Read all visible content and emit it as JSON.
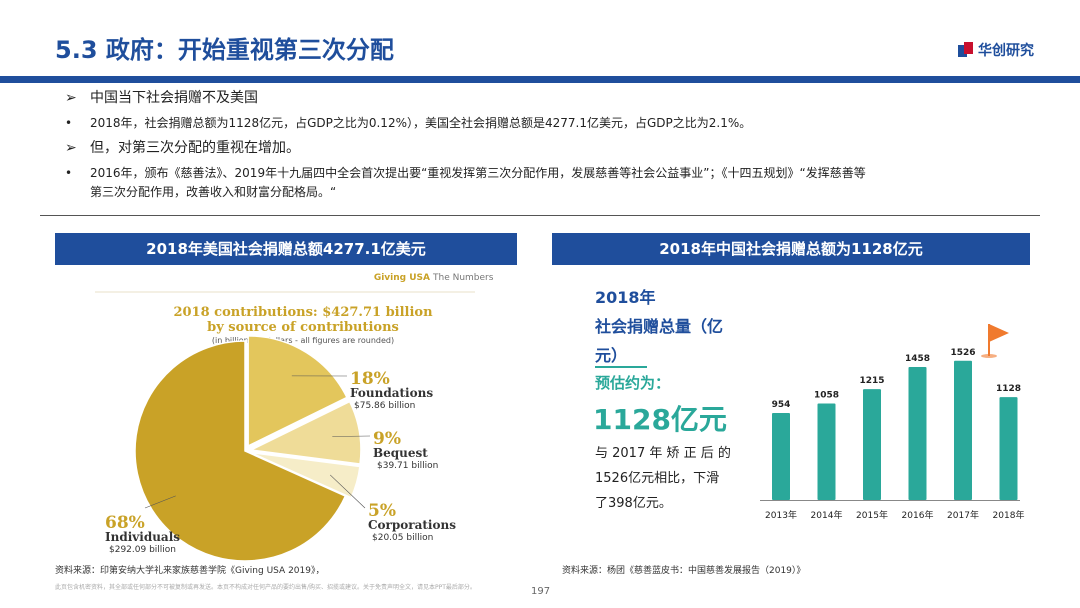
{
  "header": {
    "title": "5.3 政府：开始重视第三次分配",
    "logo_text": "华创研究"
  },
  "bullets": [
    {
      "marker": "➢",
      "text": "中国当下社会捐赠不及美国",
      "big": true
    },
    {
      "marker": "•",
      "text": "2018年，社会捐赠总额为1128亿元，占GDP之比为0.12%），美国全社会捐赠总额是4277.1亿美元，占GDP之比为2.1%。",
      "big": false
    },
    {
      "marker": "➢",
      "text": "但，对第三次分配的重视在增加。",
      "big": true
    },
    {
      "marker": "•",
      "text": "2016年，颁布《慈善法》、2019年十九届四中全会首次提出要“重视发挥第三次分配作用，发展慈善等社会公益事业”；《十四五规划》“发挥慈善等",
      "big": false
    },
    {
      "marker": "",
      "text": "第三次分配作用，改善收入和财富分配格局。“",
      "big": false
    }
  ],
  "left_panel": {
    "bar_title": "2018年美国社会捐赠总额4277.1亿美元",
    "brand": "Giving USA",
    "brand_sub": "The Numbers",
    "source": "资料来源：印第安纳大学礼来家族慈善学院《Giving USA 2019》，"
  },
  "right_panel": {
    "bar_title": "2018年中国社会捐赠总额为1128亿元",
    "line1": "2018年",
    "line2": "社会捐赠总量（亿",
    "line3": "元）",
    "est_label": "预估约为：",
    "big_value": "1128亿元",
    "note1": "与 2017 年 矫 正 后 的",
    "note2": "1526亿元相比，下滑",
    "note3": "了398亿元。",
    "source": "资料来源：杨团《慈善蓝皮书：中国慈善发展报告（2019）》"
  },
  "footer": {
    "disclaimer": "此页包含机密资料，其全部或任何部分不可被复制或再发送。本页不构成对任何产品的要约出售/购买、招揽或建议。关于免责声明全文，请见本PPT最后部分。",
    "page_number": "197"
  },
  "colors": {
    "brand_blue": "#1f4e9c",
    "teal": "#2aa89a",
    "gold_dark": "#c9a227",
    "gold_mid": "#e3c65c",
    "gold_light": "#efdc98",
    "gold_pale": "#f6edc8",
    "flag": "#f07a2e"
  },
  "chart_data": [
    {
      "type": "pie",
      "title": "2018 contributions: $427.71 billion",
      "subtitle": "by source of contributions",
      "note": "(in billions of dollars - all figures are rounded)",
      "slices": [
        {
          "name": "Individuals",
          "percent": "68%",
          "value": 292.09,
          "value_label": "$292.09 billion"
        },
        {
          "name": "Foundations",
          "percent": "18%",
          "value": 75.86,
          "value_label": "$75.86 billion"
        },
        {
          "name": "Bequest",
          "percent": "9%",
          "value": 39.71,
          "value_label": "$39.71 billion"
        },
        {
          "name": "Corporations",
          "percent": "5%",
          "value": 20.05,
          "value_label": "$20.05 billion"
        }
      ]
    },
    {
      "type": "bar",
      "categories": [
        "2013年",
        "2014年",
        "2015年",
        "2016年",
        "2017年",
        "2018年"
      ],
      "values": [
        954,
        1058,
        1215,
        1458,
        1526,
        1128
      ],
      "ylim": [
        0,
        1600
      ]
    }
  ]
}
